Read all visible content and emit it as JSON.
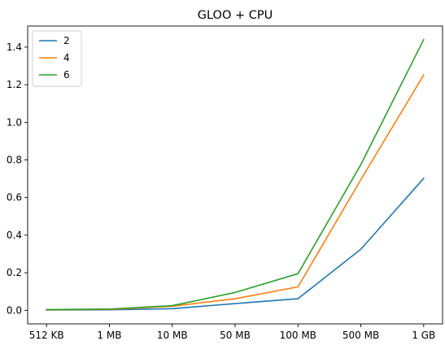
{
  "chart_data": {
    "type": "line",
    "title": "GLOO + CPU",
    "xlabel": "",
    "ylabel": "",
    "categories": [
      "512 KB",
      "1 MB",
      "10 MB",
      "50 MB",
      "100 MB",
      "500 MB",
      "1 GB"
    ],
    "y_ticks": [
      0.0,
      0.2,
      0.4,
      0.6,
      0.8,
      1.0,
      1.2,
      1.4
    ],
    "y_tick_labels": [
      "0.0",
      "0.2",
      "0.4",
      "0.6",
      "0.8",
      "1.0",
      "1.2",
      "1.4"
    ],
    "ylim": [
      -0.072,
      1.512
    ],
    "grid": false,
    "legend_position": "top-left",
    "series": [
      {
        "name": "2",
        "color": "#1f77b4",
        "values": [
          0.002,
          0.003,
          0.009,
          0.036,
          0.062,
          0.325,
          0.702
        ]
      },
      {
        "name": "4",
        "color": "#ff7f0e",
        "values": [
          0.003,
          0.005,
          0.022,
          0.062,
          0.125,
          0.695,
          1.252
        ]
      },
      {
        "name": "6",
        "color": "#2ca02c",
        "values": [
          0.004,
          0.007,
          0.025,
          0.095,
          0.195,
          0.775,
          1.44
        ]
      }
    ]
  }
}
